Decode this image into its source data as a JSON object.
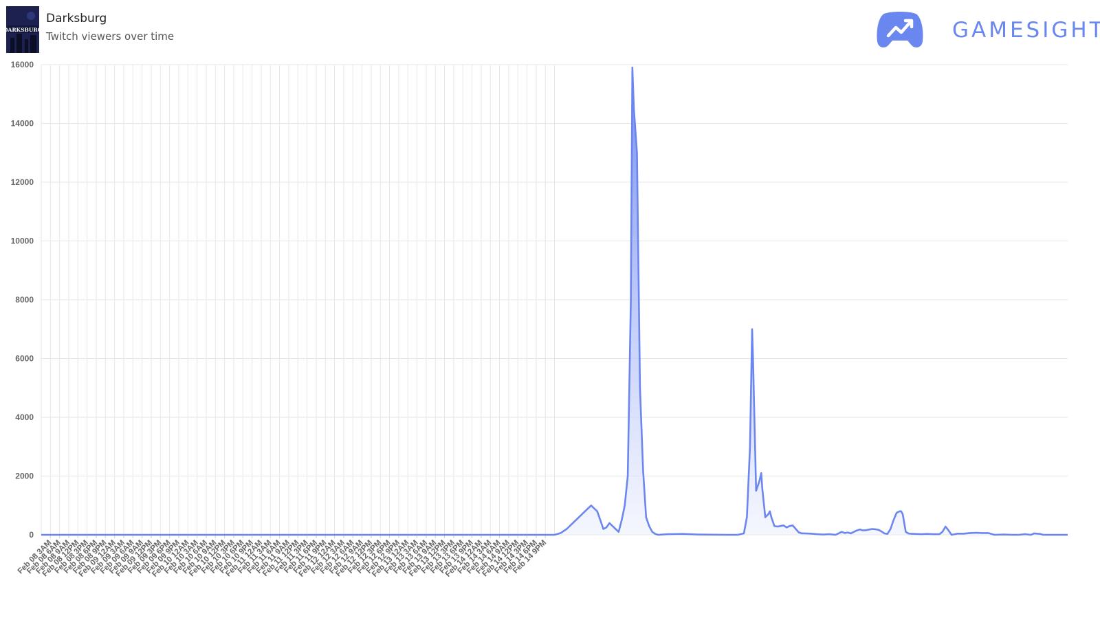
{
  "header": {
    "game_title": "Darksburg",
    "subtitle": "Twitch viewers over time",
    "thumbnail_text": "DARKSBURG",
    "brand_name": "GAMESIGHT"
  },
  "colors": {
    "line": "#6c86ef",
    "fill_top": "#5d7bee",
    "fill_bottom": "#eef1fd",
    "grid": "#e6e6e6",
    "tick_text": "#666666",
    "brand": "#6a86ef"
  },
  "chart_data": {
    "type": "area",
    "ylim": [
      0,
      16000
    ],
    "y_ticks": [
      0,
      2000,
      4000,
      6000,
      8000,
      10000,
      12000,
      14000,
      16000
    ],
    "x_hours": [
      0,
      168
    ],
    "grid": true,
    "x_tick_labels": [
      "Feb 08 3AM",
      "Feb 08 6AM",
      "Feb 08 9AM",
      "Feb 08 12PM",
      "Feb 08 3PM",
      "Feb 08 6PM",
      "Feb 08 9PM",
      "Feb 09 12AM",
      "Feb 09 3AM",
      "Feb 09 6AM",
      "Feb 09 9AM",
      "Feb 09 12PM",
      "Feb 09 3PM",
      "Feb 09 6PM",
      "Feb 09 9PM",
      "Feb 10 12AM",
      "Feb 10 3AM",
      "Feb 10 6AM",
      "Feb 10 9AM",
      "Feb 10 12PM",
      "Feb 10 3PM",
      "Feb 10 6PM",
      "Feb 10 9PM",
      "Feb 11 12AM",
      "Feb 11 3AM",
      "Feb 11 6AM",
      "Feb 11 9AM",
      "Feb 11 12PM",
      "Feb 11 3PM",
      "Feb 11 6PM",
      "Feb 11 9PM",
      "Feb 12 12AM",
      "Feb 12 3AM",
      "Feb 12 6AM",
      "Feb 12 9AM",
      "Feb 12 12PM",
      "Feb 12 3PM",
      "Feb 12 6PM",
      "Feb 12 9PM",
      "Feb 13 12AM",
      "Feb 13 3AM",
      "Feb 13 6AM",
      "Feb 13 9AM",
      "Feb 13 12PM",
      "Feb 13 3PM",
      "Feb 13 6PM",
      "Feb 13 9PM",
      "Feb 14 12AM",
      "Feb 14 3AM",
      "Feb 14 6AM",
      "Feb 14 9AM",
      "Feb 14 12PM",
      "Feb 14 3PM",
      "Feb 14 6PM",
      "Feb 14 9PM"
    ],
    "series": [
      {
        "points": [
          [
            0,
            0
          ],
          [
            30,
            0
          ],
          [
            60,
            0
          ],
          [
            90,
            0
          ],
          [
            110,
            0
          ],
          [
            115,
            0
          ],
          [
            120,
            0
          ],
          [
            125,
            0
          ],
          [
            130,
            0
          ],
          [
            133,
            0
          ],
          [
            135,
            0
          ],
          [
            150,
            0
          ],
          [
            165,
            0
          ],
          [
            168,
            0
          ],
          [
            169,
            30
          ],
          [
            170,
            60
          ],
          [
            172,
            200
          ],
          [
            174,
            400
          ],
          [
            176,
            600
          ],
          [
            178,
            800
          ],
          [
            180,
            1000
          ],
          [
            182,
            800
          ],
          [
            183,
            500
          ],
          [
            184,
            200
          ],
          [
            185,
            250
          ],
          [
            186,
            400
          ],
          [
            187,
            300
          ],
          [
            188,
            200
          ],
          [
            189,
            100
          ],
          [
            190,
            500
          ],
          [
            191,
            1000
          ],
          [
            192,
            2000
          ],
          [
            193,
            8000
          ],
          [
            193.5,
            15900
          ],
          [
            194,
            14500
          ],
          [
            195,
            13000
          ],
          [
            196,
            5000
          ],
          [
            197,
            2200
          ],
          [
            198,
            600
          ],
          [
            199,
            300
          ],
          [
            200,
            100
          ],
          [
            201,
            30
          ],
          [
            202,
            0
          ],
          [
            205,
            20
          ],
          [
            210,
            30
          ],
          [
            215,
            10
          ],
          [
            220,
            5
          ],
          [
            225,
            0
          ],
          [
            228,
            0
          ],
          [
            230,
            50
          ],
          [
            231,
            600
          ],
          [
            232,
            3000
          ],
          [
            232.7,
            7000
          ],
          [
            233,
            6000
          ],
          [
            234,
            1500
          ],
          [
            235,
            1800
          ],
          [
            235.7,
            2100
          ],
          [
            236,
            1600
          ],
          [
            237,
            600
          ],
          [
            238,
            700
          ],
          [
            238.5,
            800
          ],
          [
            239,
            600
          ],
          [
            240,
            300
          ],
          [
            241,
            280
          ],
          [
            242,
            300
          ],
          [
            243,
            320
          ],
          [
            244,
            250
          ],
          [
            245,
            300
          ],
          [
            246,
            320
          ],
          [
            247,
            200
          ],
          [
            248,
            80
          ],
          [
            249,
            50
          ],
          [
            250,
            50
          ],
          [
            252,
            40
          ],
          [
            254,
            20
          ],
          [
            256,
            10
          ],
          [
            258,
            20
          ],
          [
            260,
            0
          ],
          [
            261,
            50
          ],
          [
            262,
            100
          ],
          [
            263,
            60
          ],
          [
            264,
            80
          ],
          [
            265,
            50
          ],
          [
            266,
            100
          ],
          [
            267,
            150
          ],
          [
            268,
            180
          ],
          [
            269,
            150
          ],
          [
            270,
            160
          ],
          [
            271,
            180
          ],
          [
            272,
            200
          ],
          [
            273,
            190
          ],
          [
            274,
            170
          ],
          [
            275,
            120
          ],
          [
            276,
            50
          ],
          [
            277,
            30
          ],
          [
            278,
            200
          ],
          [
            279,
            500
          ],
          [
            280,
            750
          ],
          [
            281,
            800
          ],
          [
            281.5,
            800
          ],
          [
            282,
            700
          ],
          [
            283,
            100
          ],
          [
            284,
            40
          ],
          [
            286,
            30
          ],
          [
            288,
            20
          ],
          [
            290,
            30
          ],
          [
            292,
            20
          ],
          [
            294,
            20
          ],
          [
            295,
            100
          ],
          [
            296,
            280
          ],
          [
            297,
            150
          ],
          [
            298,
            0
          ],
          [
            299,
            20
          ],
          [
            300,
            40
          ],
          [
            302,
            40
          ],
          [
            304,
            60
          ],
          [
            306,
            70
          ],
          [
            308,
            60
          ],
          [
            310,
            60
          ],
          [
            312,
            0
          ],
          [
            315,
            10
          ],
          [
            318,
            0
          ],
          [
            320,
            0
          ],
          [
            322,
            20
          ],
          [
            324,
            0
          ],
          [
            325,
            50
          ],
          [
            327,
            30
          ],
          [
            328,
            0
          ],
          [
            332,
            0
          ],
          [
            335,
            0
          ],
          [
            336,
            0
          ]
        ]
      }
    ]
  }
}
